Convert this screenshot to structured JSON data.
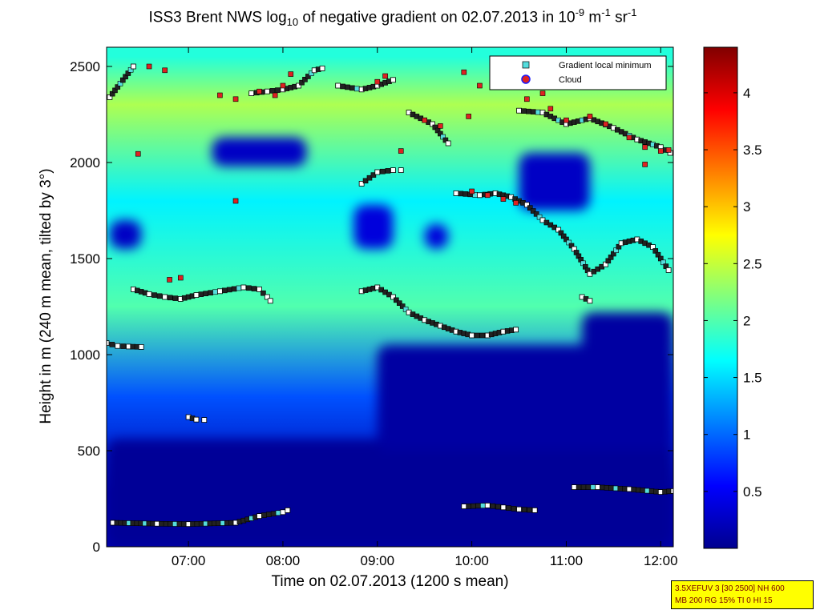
{
  "title": {
    "prefix": "ISS3 Brent NWS log",
    "log_sub": "10",
    "middle": " of negative gradient on 02.07.2013 in 10",
    "exp1": "-9",
    "m_text": " m",
    "exp2": "-1",
    "sr_text": " sr",
    "exp3": "-1"
  },
  "xlabel": "Time on 02.07.2013 (1200 s mean)",
  "ylabel": "Height in m (240 m mean, tilted by 3°)",
  "legend": [
    {
      "label": "Gradient local minimum",
      "marker": "square",
      "color": "#55dddd"
    },
    {
      "label": "Cloud",
      "marker": "circle",
      "color": "#dd2222"
    }
  ],
  "info_box": {
    "line1": "3.5XEFUV 3 [30 2500] NH 600",
    "line2": "MB 200 RG 15% TI 0 HI 15"
  },
  "colors": {
    "background": "#ffffff",
    "plot_low": "#00008f",
    "plot_high": "#800000",
    "info_box_bg": "#ffff00",
    "info_box_text": "#7a0000"
  },
  "chart_data": {
    "type": "heatmap",
    "colormap": "jet",
    "x_unit": "time",
    "xlim": [
      "06:08",
      "12:08"
    ],
    "ylim": [
      0,
      2600
    ],
    "x_ticks": [
      "07:00",
      "08:00",
      "09:00",
      "10:00",
      "11:00",
      "12:00"
    ],
    "y_ticks": [
      "0",
      "500",
      "1000",
      "1500",
      "2000",
      "2500"
    ],
    "colorbar": {
      "range": [
        0,
        4.4
      ],
      "ticks": [
        "0.5",
        "1",
        "1.5",
        "2",
        "2.5",
        "3",
        "3.5",
        "4"
      ]
    },
    "field_levels": [
      {
        "height_range": [
          0,
          560
        ],
        "value": 0.2
      },
      {
        "height_range": [
          560,
          1000
        ],
        "value": 0.9
      },
      {
        "height_range": [
          1000,
          1500
        ],
        "value": 2.0
      },
      {
        "height_range": [
          1500,
          2100
        ],
        "value": 1.6
      },
      {
        "height_range": [
          2100,
          2500
        ],
        "value": 2.4
      },
      {
        "height_range": [
          2500,
          2600
        ],
        "value": 1.8
      }
    ],
    "dark_regions": [
      {
        "x": [
          "06:08",
          "12:08"
        ],
        "y": [
          0,
          560
        ],
        "value": 0.1
      },
      {
        "x": [
          "09:00",
          "12:08"
        ],
        "y": [
          500,
          1050
        ],
        "value": 0.15
      },
      {
        "x": [
          "11:10",
          "12:08"
        ],
        "y": [
          980,
          1220
        ],
        "value": 0.15
      },
      {
        "x": [
          "07:15",
          "08:15"
        ],
        "y": [
          1980,
          2130
        ],
        "value": 0.3
      },
      {
        "x": [
          "06:10",
          "06:30"
        ],
        "y": [
          1550,
          1700
        ],
        "value": 0.3
      },
      {
        "x": [
          "08:45",
          "09:10"
        ],
        "y": [
          1550,
          1780
        ],
        "value": 0.4
      },
      {
        "x": [
          "09:30",
          "09:45"
        ],
        "y": [
          1550,
          1680
        ],
        "value": 0.4
      },
      {
        "x": [
          "10:30",
          "11:15"
        ],
        "y": [
          1750,
          2050
        ],
        "value": 0.3
      }
    ],
    "series": [
      {
        "name": "Gradient local minimum",
        "marker": "square",
        "segments": [
          {
            "x": [
              "06:08",
              "06:15",
              "06:22",
              "06:30"
            ],
            "y": [
              1060,
              1045,
              1042,
              1040
            ]
          },
          {
            "x": [
              "06:25",
              "06:35",
              "06:45",
              "06:55",
              "07:05",
              "07:20",
              "07:35",
              "07:45",
              "07:50",
              "07:52"
            ],
            "y": [
              1340,
              1315,
              1300,
              1290,
              1310,
              1330,
              1350,
              1340,
              1300,
              1280
            ]
          },
          {
            "x": [
              "06:12",
              "06:40",
              "07:00",
              "07:30",
              "07:45",
              "08:00",
              "08:03"
            ],
            "y": [
              125,
              120,
              118,
              125,
              160,
              180,
              190
            ]
          },
          {
            "x": [
              "07:00",
              "07:05",
              "07:10"
            ],
            "y": [
              675,
              662,
              660
            ]
          },
          {
            "x": [
              "08:50",
              "09:00",
              "09:10",
              "09:20",
              "09:30",
              "09:40",
              "09:50",
              "10:00",
              "10:10",
              "10:20",
              "10:28"
            ],
            "y": [
              1330,
              1350,
              1300,
              1220,
              1180,
              1150,
              1120,
              1100,
              1100,
              1120,
              1130
            ]
          },
          {
            "x": [
              "08:50",
              "09:00",
              "09:10",
              "09:15"
            ],
            "y": [
              1890,
              1950,
              1960,
              1960
            ]
          },
          {
            "x": [
              "09:50",
              "10:05",
              "10:15",
              "10:25",
              "10:35",
              "10:45",
              "10:55",
              "11:05",
              "11:15",
              "11:25",
              "11:35",
              "11:45",
              "11:55",
              "12:05"
            ],
            "y": [
              1840,
              1830,
              1840,
              1820,
              1780,
              1700,
              1650,
              1550,
              1420,
              1470,
              1580,
              1600,
              1560,
              1440
            ]
          },
          {
            "x": [
              "09:55",
              "10:10",
              "10:20",
              "10:30",
              "10:40"
            ],
            "y": [
              210,
              215,
              205,
              195,
              190
            ]
          },
          {
            "x": [
              "11:05",
              "11:20",
              "11:40",
              "12:00",
              "12:08"
            ],
            "y": [
              310,
              310,
              300,
              285,
              290
            ]
          },
          {
            "x": [
              "08:35",
              "08:50",
              "09:00",
              "09:10"
            ],
            "y": [
              2400,
              2380,
              2400,
              2430
            ]
          },
          {
            "x": [
              "09:20",
              "09:35",
              "09:45"
            ],
            "y": [
              2260,
              2200,
              2100
            ]
          },
          {
            "x": [
              "10:30",
              "10:45",
              "11:00",
              "11:15",
              "11:30",
              "11:45",
              "12:00",
              "12:06"
            ],
            "y": [
              2270,
              2260,
              2200,
              2230,
              2180,
              2120,
              2080,
              2050
            ]
          },
          {
            "x": [
              "07:40",
              "07:50",
              "08:00",
              "08:10",
              "08:20",
              "08:25"
            ],
            "y": [
              2360,
              2370,
              2380,
              2400,
              2480,
              2490
            ]
          },
          {
            "x": [
              "06:10",
              "06:25"
            ],
            "y": [
              2340,
              2500
            ]
          },
          {
            "x": [
              "11:10",
              "11:15"
            ],
            "y": [
              1300,
              1280
            ]
          }
        ]
      },
      {
        "name": "Cloud",
        "marker": "circle",
        "points": [
          {
            "x": "06:35",
            "y": 2500
          },
          {
            "x": "06:45",
            "y": 2480
          },
          {
            "x": "06:28",
            "y": 2045
          },
          {
            "x": "07:30",
            "y": 1800
          },
          {
            "x": "06:48",
            "y": 1390
          },
          {
            "x": "06:55",
            "y": 1400
          },
          {
            "x": "07:20",
            "y": 2350
          },
          {
            "x": "07:30",
            "y": 2330
          },
          {
            "x": "07:45",
            "y": 2370
          },
          {
            "x": "07:55",
            "y": 2350
          },
          {
            "x": "08:00",
            "y": 2400
          },
          {
            "x": "08:05",
            "y": 2460
          },
          {
            "x": "09:00",
            "y": 2420
          },
          {
            "x": "09:05",
            "y": 2450
          },
          {
            "x": "09:15",
            "y": 2060
          },
          {
            "x": "09:30",
            "y": 2220
          },
          {
            "x": "09:40",
            "y": 2190
          },
          {
            "x": "09:55",
            "y": 2470
          },
          {
            "x": "10:05",
            "y": 2400
          },
          {
            "x": "09:58",
            "y": 2240
          },
          {
            "x": "10:00",
            "y": 1850
          },
          {
            "x": "10:10",
            "y": 1830
          },
          {
            "x": "10:20",
            "y": 1810
          },
          {
            "x": "10:28",
            "y": 1790
          },
          {
            "x": "10:35",
            "y": 2330
          },
          {
            "x": "10:45",
            "y": 2360
          },
          {
            "x": "10:50",
            "y": 2280
          },
          {
            "x": "11:00",
            "y": 2220
          },
          {
            "x": "11:15",
            "y": 2240
          },
          {
            "x": "11:25",
            "y": 2200
          },
          {
            "x": "11:40",
            "y": 2130
          },
          {
            "x": "11:50",
            "y": 2080
          },
          {
            "x": "12:00",
            "y": 2060
          },
          {
            "x": "12:05",
            "y": 2065
          },
          {
            "x": "11:50",
            "y": 1990
          }
        ]
      }
    ]
  }
}
